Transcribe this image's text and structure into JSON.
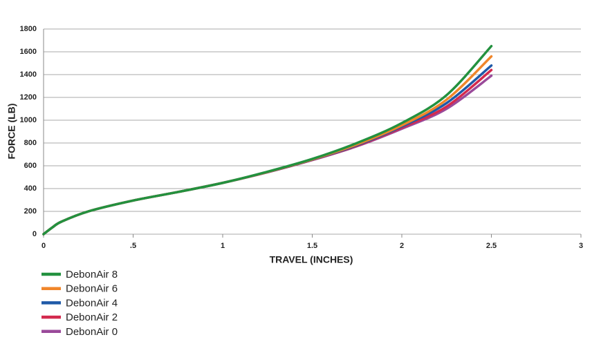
{
  "chart_data": {
    "type": "line",
    "x_label": "TRAVEL (INCHES)",
    "y_label": "FORCE (LB)",
    "x": [
      0,
      0.05,
      0.1,
      0.25,
      0.5,
      0.75,
      1,
      1.25,
      1.5,
      1.75,
      2,
      2.25,
      2.5
    ],
    "series": [
      {
        "name": "DebonAir 8",
        "color": "#23913f",
        "values": [
          0,
          60,
          110,
          200,
          295,
          370,
          450,
          548,
          660,
          800,
          975,
          1220,
          1650
        ]
      },
      {
        "name": "DebonAir 6",
        "color": "#f0862a",
        "values": [
          0,
          60,
          110,
          200,
          295,
          370,
          450,
          546,
          656,
          788,
          955,
          1180,
          1560
        ]
      },
      {
        "name": "DebonAir 4",
        "color": "#1f5aa8",
        "values": [
          0,
          60,
          110,
          200,
          295,
          370,
          450,
          545,
          654,
          782,
          945,
          1150,
          1480
        ]
      },
      {
        "name": "DebonAir 2",
        "color": "#d32a4e",
        "values": [
          0,
          60,
          110,
          200,
          295,
          370,
          450,
          544,
          652,
          777,
          935,
          1120,
          1440
        ]
      },
      {
        "name": "DebonAir 0",
        "color": "#9a4a9a",
        "values": [
          0,
          60,
          110,
          200,
          295,
          370,
          450,
          543,
          650,
          772,
          925,
          1100,
          1390
        ]
      }
    ],
    "xlim": [
      0,
      3
    ],
    "ylim": [
      0,
      1800
    ],
    "xticks": [
      0,
      {
        "value": 0.5,
        "label": ".5"
      },
      1,
      1.5,
      2,
      2.5,
      3
    ],
    "yticks": [
      0,
      200,
      400,
      600,
      800,
      1000,
      1200,
      1400,
      1600,
      1800
    ],
    "grid": true
  }
}
